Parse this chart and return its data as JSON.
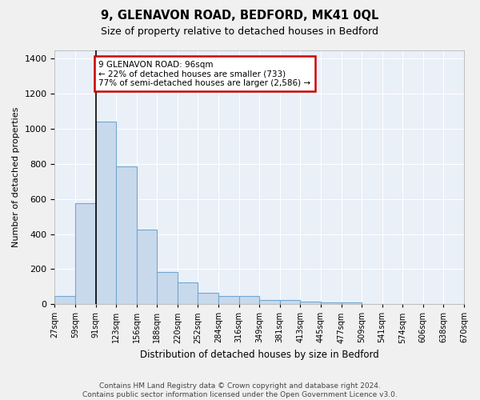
{
  "title": "9, GLENAVON ROAD, BEDFORD, MK41 0QL",
  "subtitle": "Size of property relative to detached houses in Bedford",
  "xlabel": "Distribution of detached houses by size in Bedford",
  "ylabel": "Number of detached properties",
  "bar_color": "#c9d9ec",
  "bar_edge_color": "#6fa8d0",
  "background_color": "#eaf0f8",
  "grid_color": "#ffffff",
  "bin_labels": [
    "27sqm",
    "59sqm",
    "91sqm",
    "123sqm",
    "156sqm",
    "188sqm",
    "220sqm",
    "252sqm",
    "284sqm",
    "316sqm",
    "349sqm",
    "381sqm",
    "413sqm",
    "445sqm",
    "477sqm",
    "509sqm",
    "541sqm",
    "574sqm",
    "606sqm",
    "638sqm",
    "670sqm"
  ],
  "bar_heights": [
    47,
    578,
    1040,
    785,
    425,
    183,
    125,
    65,
    47,
    47,
    25,
    22,
    15,
    10,
    10,
    0,
    0,
    0,
    0,
    0
  ],
  "ylim": [
    0,
    1450
  ],
  "yticks": [
    0,
    200,
    400,
    600,
    800,
    1000,
    1200,
    1400
  ],
  "property_bin_index": 2,
  "annotation_text": "9 GLENAVON ROAD: 96sqm\n← 22% of detached houses are smaller (733)\n77% of semi-detached houses are larger (2,586) →",
  "annotation_box_color": "#ffffff",
  "annotation_box_edge_color": "#cc0000",
  "vline_color": "#000000",
  "footer_text": "Contains HM Land Registry data © Crown copyright and database right 2024.\nContains public sector information licensed under the Open Government Licence v3.0."
}
